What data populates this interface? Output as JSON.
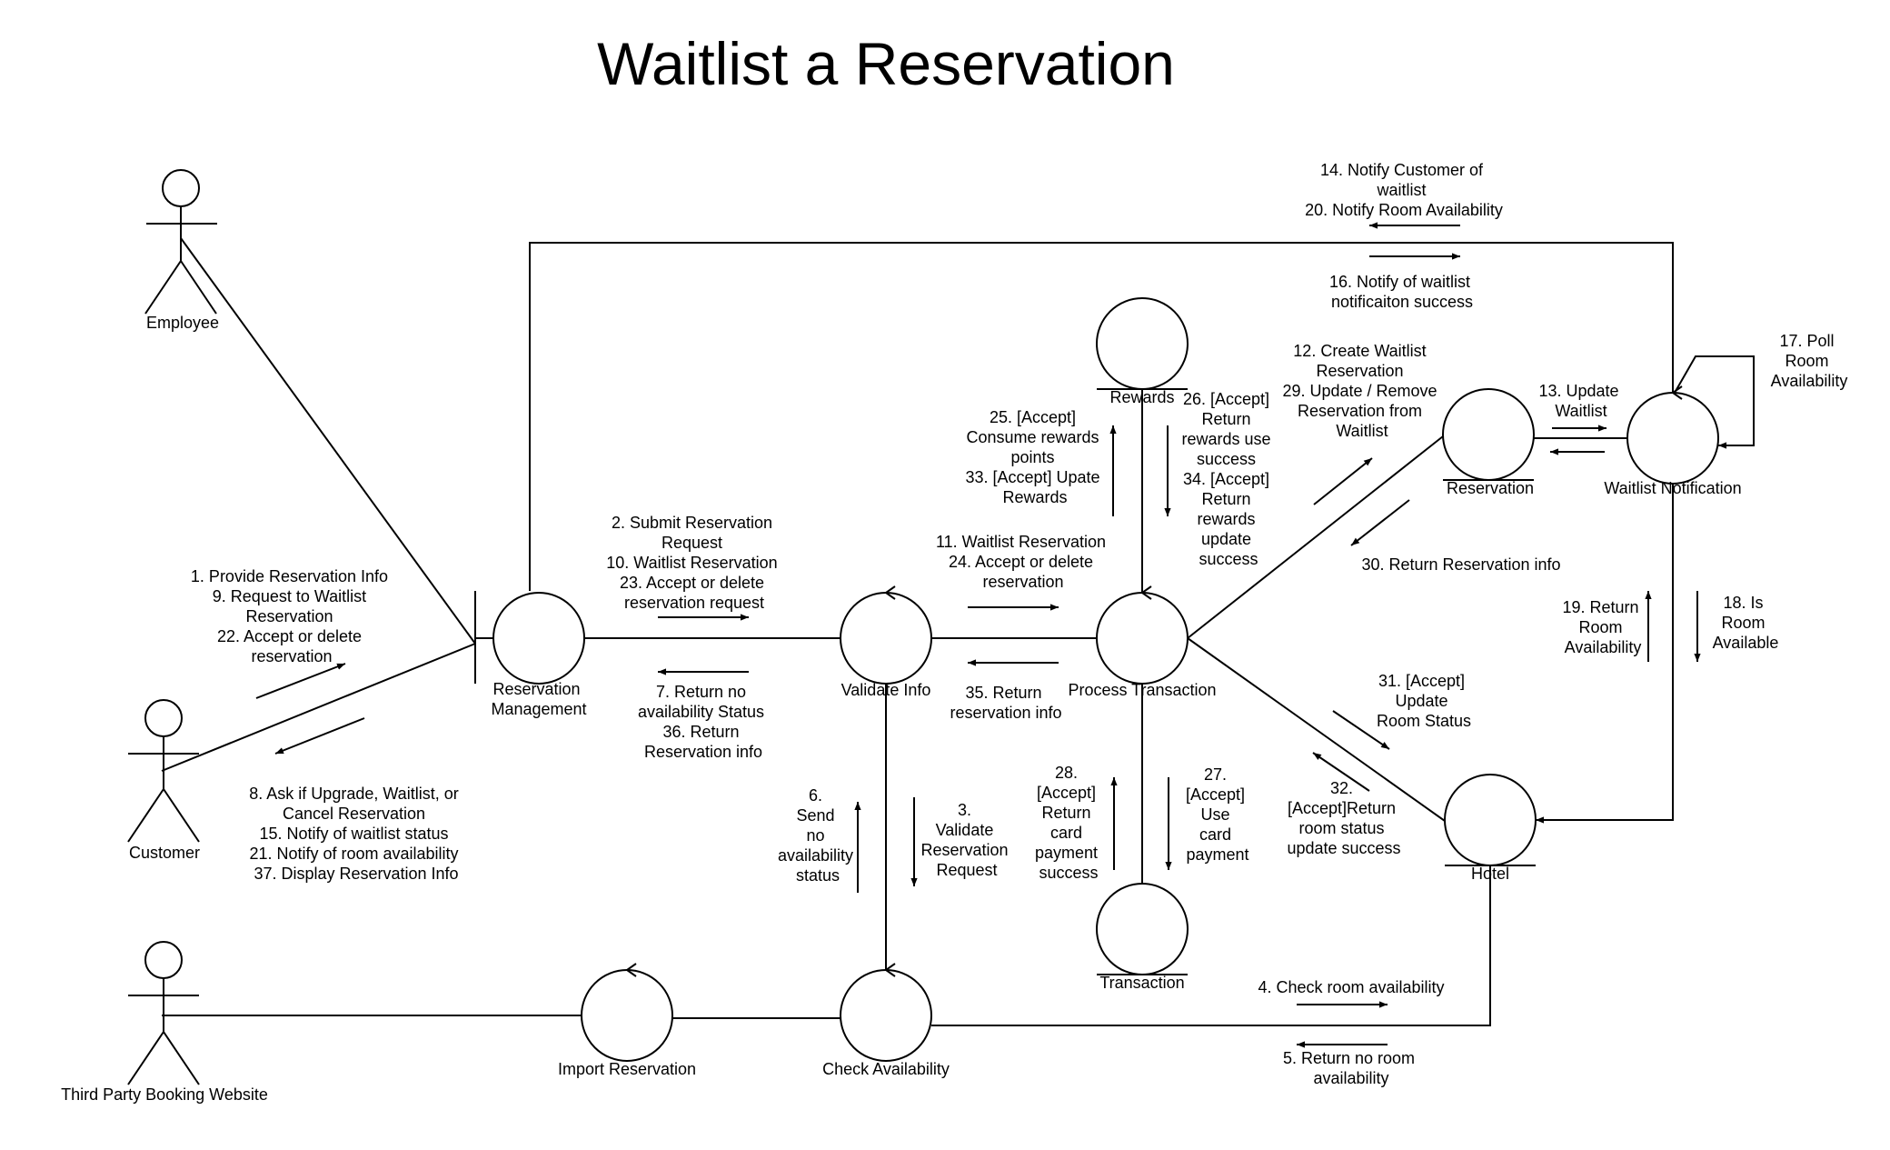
{
  "title": "Waitlist a Reservation",
  "actors": {
    "employee": "Employee",
    "customer": "Customer",
    "third_party": "Third Party Booking Website"
  },
  "objects": {
    "reservation_management": [
      "Reservation",
      "Management"
    ],
    "validate_info": "Validate Info",
    "process_transaction": "Process Transaction",
    "rewards": "Rewards",
    "reservation": "Reservation",
    "waitlist_notification": "Waitlist Notification",
    "hotel": "Hotel",
    "transaction": "Transaction",
    "import_reservation": "Import Reservation",
    "check_availability": "Check Availability"
  },
  "messages": {
    "customer_to_rm": [
      "1. Provide Reservation Info",
      "9. Request to Waitlist",
      "Reservation",
      "22. Accept or delete",
      "reservation"
    ],
    "rm_to_customer": [
      "8. Ask if Upgrade, Waitlist, or",
      "Cancel Reservation",
      "15. Notify of waitlist status",
      "21. Notify of room availability",
      "37. Display Reservation Info"
    ],
    "rm_to_validate": [
      "2. Submit Reservation",
      "Request",
      "10. Waitlist Reservation",
      "23. Accept or delete",
      "reservation request"
    ],
    "validate_to_rm": [
      "7. Return no",
      "availability Status",
      "36. Return",
      "Reservation info"
    ],
    "validate_to_pt": [
      "11. Waitlist Reservation",
      "24. Accept or delete",
      "reservation"
    ],
    "pt_to_validate": [
      "35. Return",
      "reservation info"
    ],
    "pt_to_rewards": [
      "25. [Accept]",
      "Consume rewards",
      "points",
      "33. [Accept] Upate",
      "Rewards"
    ],
    "rewards_to_pt": [
      "26. [Accept]",
      "Return",
      "rewards use",
      "success",
      "34. [Accept]",
      "Return",
      "rewards",
      "update",
      "success"
    ],
    "pt_to_reservation": [
      "12. Create Waitlist",
      "Reservation",
      "29. Update / Remove",
      "Reservation from",
      "Waitlist"
    ],
    "reservation_to_pt": [
      "30. Return Reservation info"
    ],
    "reservation_to_wn": [
      "13. Update",
      "Waitlist"
    ],
    "wn_to_customer": [
      "14. Notify Customer of",
      "waitlist",
      "20. Notify Room Availability"
    ],
    "customer_to_wn": [
      "16. Notify of waitlist",
      "notificaiton success"
    ],
    "wn_self": [
      "17. Poll",
      "Room",
      "Availability"
    ],
    "wn_to_hotel": [
      "18. Is",
      "Room",
      "Available"
    ],
    "hotel_to_wn": [
      "19. Return",
      "Room",
      "Availability"
    ],
    "pt_to_hotel": [
      "31. [Accept]",
      "Update",
      "Room Status"
    ],
    "hotel_to_pt": [
      "32.",
      "[Accept]Return",
      "room status",
      "update success"
    ],
    "transaction_to_pt": [
      "28.",
      "[Accept]",
      "Return",
      "card",
      "payment",
      "success"
    ],
    "pt_to_transaction": [
      "27.",
      "[Accept]",
      "Use",
      "card",
      "payment"
    ],
    "check_to_validate": [
      "6.",
      "Send",
      "no",
      "availability",
      "status"
    ],
    "validate_to_check": [
      "3.",
      "Validate",
      "Reservation",
      "Request"
    ],
    "check_to_hotel": [
      "4. Check room availability"
    ],
    "hotel_to_check": [
      "5. Return no room",
      "availability"
    ]
  }
}
